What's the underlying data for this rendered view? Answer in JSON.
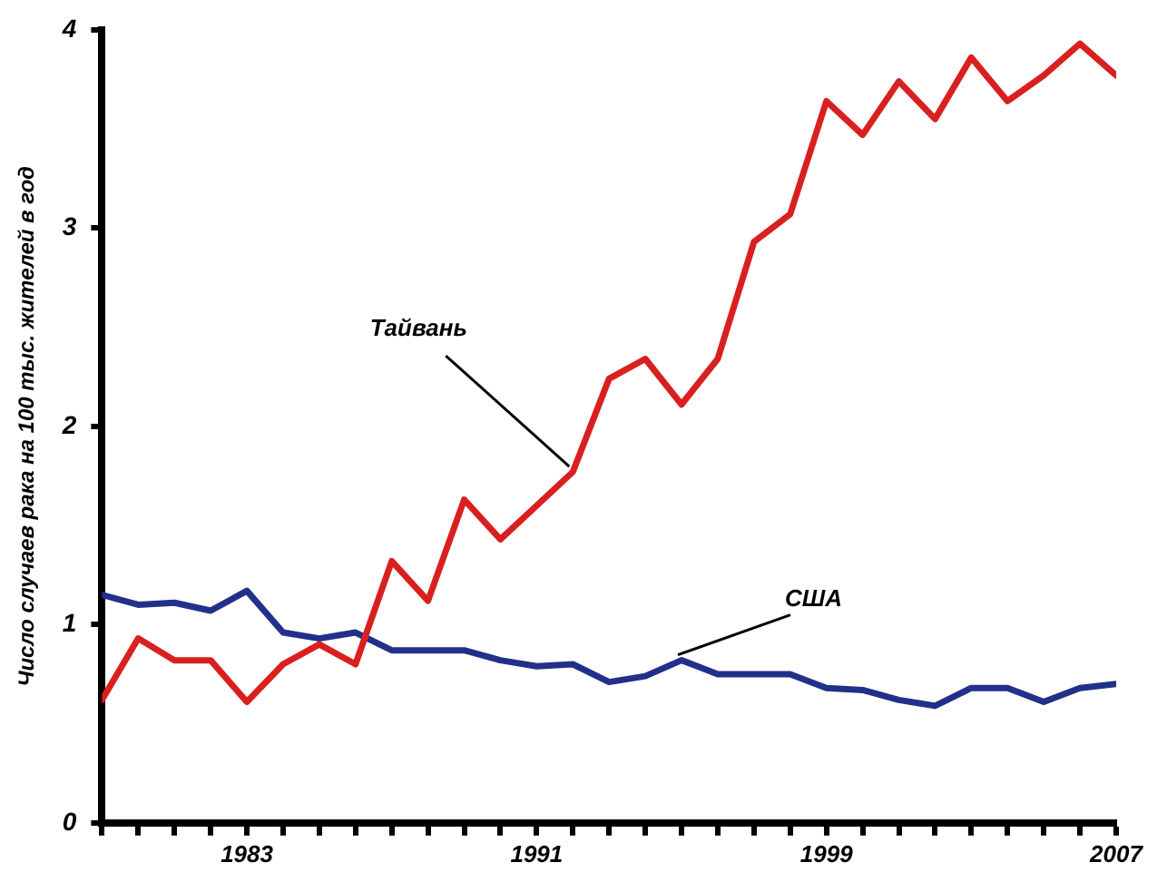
{
  "chart_data": {
    "type": "line",
    "ylabel": "Число случаев рака на 100 тыс. жителей в год",
    "x": [
      1979,
      1980,
      1981,
      1982,
      1983,
      1984,
      1985,
      1986,
      1987,
      1988,
      1989,
      1990,
      1991,
      1992,
      1993,
      1994,
      1995,
      1996,
      1997,
      1998,
      1999,
      2000,
      2001,
      2002,
      2003,
      2004,
      2005,
      2006,
      2007
    ],
    "series": [
      {
        "color": "#d92020",
        "values": [
          0.62,
          0.93,
          0.82,
          0.82,
          0.61,
          0.8,
          0.9,
          0.8,
          1.32,
          1.12,
          1.63,
          1.43,
          1.6,
          1.77,
          2.24,
          2.34,
          2.11,
          2.34,
          2.93,
          3.07,
          3.64,
          3.47,
          3.74,
          3.55,
          3.86,
          3.64,
          3.77,
          3.93,
          3.77
        ]
      },
      {
        "color": "#22308a",
        "values": [
          1.15,
          1.1,
          1.11,
          1.07,
          1.17,
          0.96,
          0.93,
          0.96,
          0.87,
          0.87,
          0.87,
          0.82,
          0.79,
          0.8,
          0.71,
          0.74,
          0.82,
          0.75,
          0.75,
          0.75,
          0.68,
          0.67,
          0.62,
          0.59,
          0.68,
          0.68,
          0.61,
          0.68,
          0.7
        ]
      }
    ],
    "annotations": [
      {
        "text": "Тайвань",
        "x": 1992,
        "y": 1.77
      },
      {
        "text": "США",
        "x": 1995,
        "y": 0.82
      }
    ],
    "xlim": [
      1979,
      2007
    ],
    "xticks": [
      {
        "value": 1979,
        "label": null
      },
      {
        "value": 1980,
        "label": null
      },
      {
        "value": 1981,
        "label": null
      },
      {
        "value": 1982,
        "label": null
      },
      1983,
      {
        "value": 1984,
        "label": null
      },
      {
        "value": 1985,
        "label": null
      },
      {
        "value": 1986,
        "label": null
      },
      {
        "value": 1987,
        "label": null
      },
      {
        "value": 1988,
        "label": null
      },
      {
        "value": 1989,
        "label": null
      },
      {
        "value": 1990,
        "label": null
      },
      1991,
      {
        "value": 1992,
        "label": null
      },
      {
        "value": 1993,
        "label": null
      },
      {
        "value": 1994,
        "label": null
      },
      {
        "value": 1995,
        "label": null
      },
      {
        "value": 1996,
        "label": null
      },
      {
        "value": 1997,
        "label": null
      },
      {
        "value": 1998,
        "label": null
      },
      1999,
      {
        "value": 2000,
        "label": null
      },
      {
        "value": 2001,
        "label": null
      },
      {
        "value": 2002,
        "label": null
      },
      {
        "value": 2003,
        "label": null
      },
      {
        "value": 2004,
        "label": null
      },
      {
        "value": 2005,
        "label": null
      },
      {
        "value": 2006,
        "label": null
      },
      2007
    ],
    "ylim": [
      0,
      4
    ],
    "yticks": [
      0,
      1,
      2,
      3,
      4
    ],
    "grid": false,
    "legend": false,
    "marker": "none",
    "line_style": "solid"
  }
}
